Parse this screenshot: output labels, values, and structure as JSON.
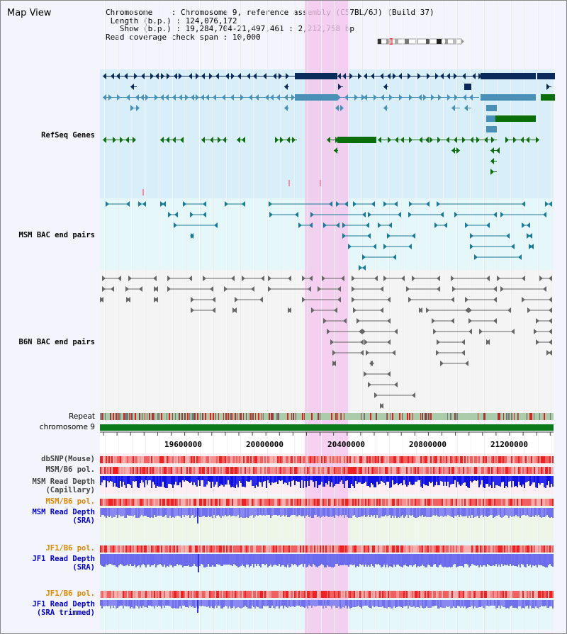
{
  "window": {
    "title": "Map View"
  },
  "info": {
    "chromosome_key": "Chromosome",
    "chromosome_val": "Chromosome 9, reference assembly (C57BL/6J) (Build 37)",
    "length_key": "Length (b.p.)",
    "length_val": "124,076,172",
    "show_key": "Show (b.p.)",
    "show_val": "19,284,704-21,497,461 : 2,212,758 bp",
    "span_key": "Read coverage check span",
    "span_val": "10,000"
  },
  "tracks": {
    "refseq": {
      "label": "RefSeq Genes",
      "color": "#2222aa"
    },
    "msm_bac": {
      "label": "MSM BAC end pairs",
      "color": "#007799"
    },
    "b6n_bac": {
      "label": "B6N BAC end pairs",
      "color": "#555555"
    },
    "repeat": {
      "label": "Repeat"
    },
    "chromosome": {
      "label": "chromosome 9"
    },
    "dbsnp": {
      "label": "dbSNP(Mouse)"
    },
    "msm_b6_pol": {
      "label": "MSM/B6 pol."
    },
    "msm_depth_cap": {
      "label": "MSM Read Depth\n(Capillary)"
    },
    "msm_b6_pol_sra": {
      "label": "MSM/B6 pol.",
      "color": "#dd8800"
    },
    "msm_depth_sra": {
      "label": "MSM Read Depth\n(SRA)",
      "color": "#0000cc"
    },
    "jf1_b6_pol": {
      "label": "JF1/B6 pol.",
      "color": "#dd8800"
    },
    "jf1_depth_sra": {
      "label": "JF1 Read Depth\n(SRA)",
      "color": "#0000cc"
    },
    "jf1_b6_pol_trim": {
      "label": "JF1/B6 pol.",
      "color": "#dd8800"
    },
    "jf1_depth_trim": {
      "label": "JF1 Read Depth\n(SRA trimmed)",
      "color": "#0000cc"
    }
  },
  "axis": {
    "ticks": [
      "19600000",
      "20000000",
      "20400000",
      "20800000",
      "21200000"
    ]
  },
  "colors": {
    "refseq_dark": "#0a2a5c",
    "refseq_mid": "#4a8fb5",
    "refseq_green": "#0a6e0a",
    "highlight": "#f5c6ee",
    "depth_dark": "#1010e0",
    "depth_light": "#7070ee",
    "pol": "#ee3333"
  }
}
